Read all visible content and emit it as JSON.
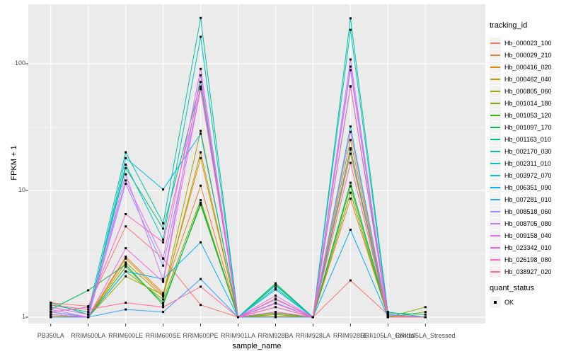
{
  "y_axis": {
    "title": "FPKM + 1",
    "tick_labels": [
      "1",
      "10",
      "100"
    ]
  },
  "x_axis": {
    "title": "sample_name"
  },
  "legend": {
    "title": "tracking_id"
  },
  "legend2": {
    "title": "quant_status",
    "item_label": "OK"
  },
  "chart_data": {
    "type": "line",
    "title": "",
    "xlabel": "sample_name",
    "ylabel": "FPKM + 1",
    "y_scale": "log10",
    "ylim": [
      0.9,
      295
    ],
    "y_ticks": [
      1,
      10,
      100
    ],
    "y_minor_ticks": [
      3.162,
      31.62
    ],
    "grid": true,
    "legend_position": "right",
    "panel_background": "#EBEBEB",
    "grid_color": "#FFFFFF",
    "tick_text_color": "#4D4D4D",
    "point_color": "#000000",
    "quant_status_label": "OK",
    "categories": [
      "PB350LA",
      "RRIM600LA",
      "RRIM600LE",
      "RRIM600SE",
      "RRIM600PE",
      "RRIM901LA",
      "RRIM928BA",
      "RRIM928LA",
      "RRIM928LE",
      "RRII105LA_Control",
      "RRII105LA_Stressed"
    ],
    "series": [
      {
        "name": "Hb_000023_100",
        "color": "#F8766D",
        "values": [
          1.3,
          1.22,
          5.2,
          2.9,
          1.25,
          1.0,
          1.4,
          1.0,
          1.95,
          1.05,
          1.0
        ]
      },
      {
        "name": "Hb_000029_210",
        "color": "#EA8331",
        "values": [
          1.1,
          1.0,
          3.0,
          1.55,
          10.9,
          1.0,
          1.1,
          1.0,
          8.6,
          1.02,
          1.0
        ]
      },
      {
        "name": "Hb_000416_020",
        "color": "#D89000",
        "values": [
          1.05,
          1.0,
          2.9,
          1.5,
          18.0,
          1.0,
          1.05,
          1.0,
          19.5,
          1.0,
          1.0
        ]
      },
      {
        "name": "Hb_000462_040",
        "color": "#C09B00",
        "values": [
          1.02,
          1.0,
          2.7,
          1.45,
          20.0,
          1.0,
          1.02,
          1.0,
          21.5,
          1.0,
          1.0
        ]
      },
      {
        "name": "Hb_000805_060",
        "color": "#A3A500",
        "values": [
          1.0,
          1.0,
          2.1,
          1.5,
          29.5,
          1.0,
          1.0,
          1.0,
          25.0,
          1.0,
          1.1
        ]
      },
      {
        "name": "Hb_001014_180",
        "color": "#7CAE00",
        "values": [
          1.05,
          1.0,
          2.3,
          1.38,
          8.4,
          1.0,
          1.05,
          1.0,
          9.6,
          1.0,
          1.2
        ]
      },
      {
        "name": "Hb_001053_120",
        "color": "#39B600",
        "values": [
          1.1,
          1.0,
          2.5,
          1.3,
          7.7,
          1.0,
          1.08,
          1.0,
          10.8,
          1.0,
          1.0
        ]
      },
      {
        "name": "Hb_001097_170",
        "color": "#00BB4E",
        "values": [
          1.15,
          1.63,
          2.6,
          1.25,
          8.0,
          1.0,
          1.85,
          1.0,
          11.5,
          1.05,
          1.0
        ]
      },
      {
        "name": "Hb_001163_010",
        "color": "#00BF7D",
        "values": [
          1.3,
          1.05,
          15.0,
          5.0,
          72.0,
          1.0,
          1.8,
          1.0,
          66.0,
          1.08,
          1.05
        ]
      },
      {
        "name": "Hb_002170_030",
        "color": "#00C1A3",
        "values": [
          1.25,
          1.1,
          20.0,
          5.5,
          230.0,
          1.0,
          1.78,
          1.0,
          228.0,
          1.1,
          1.0
        ]
      },
      {
        "name": "Hb_002311_010",
        "color": "#00BFC4",
        "values": [
          1.2,
          1.05,
          16.0,
          4.1,
          163.0,
          1.0,
          1.7,
          1.0,
          185.0,
          1.05,
          1.0
        ]
      },
      {
        "name": "Hb_003972_070",
        "color": "#00BAE0",
        "values": [
          1.1,
          1.0,
          18.0,
          10.2,
          28.0,
          1.0,
          1.65,
          1.0,
          32.0,
          1.0,
          1.0
        ]
      },
      {
        "name": "Hb_006351_090",
        "color": "#00B0F6",
        "values": [
          1.05,
          1.0,
          2.3,
          2.0,
          3.9,
          1.0,
          1.2,
          1.0,
          4.9,
          1.0,
          1.0
        ]
      },
      {
        "name": "Hb_007281_010",
        "color": "#35A2FF",
        "values": [
          1.0,
          1.0,
          1.15,
          1.1,
          2.0,
          1.0,
          1.0,
          1.0,
          21.0,
          1.0,
          1.0
        ]
      },
      {
        "name": "Hb_008518_060",
        "color": "#9590FF",
        "values": [
          1.1,
          1.0,
          11.3,
          2.55,
          63.0,
          1.0,
          1.3,
          1.0,
          89.0,
          1.0,
          1.0
        ]
      },
      {
        "name": "Hb_008705_080",
        "color": "#C77CFF",
        "values": [
          1.15,
          1.0,
          13.4,
          1.95,
          81.0,
          1.0,
          1.38,
          1.0,
          108.0,
          1.0,
          1.0
        ]
      },
      {
        "name": "Hb_009158_040",
        "color": "#E76BF3",
        "values": [
          1.2,
          1.05,
          12.0,
          2.9,
          91.0,
          1.0,
          1.48,
          1.0,
          95.0,
          1.04,
          1.0
        ]
      },
      {
        "name": "Hb_023342_010",
        "color": "#FA62DB",
        "values": [
          1.05,
          1.0,
          3.5,
          1.9,
          63.5,
          1.0,
          1.1,
          1.0,
          29.0,
          1.0,
          1.0
        ]
      },
      {
        "name": "Hb_026198_080",
        "color": "#FF62BC",
        "values": [
          1.1,
          1.2,
          6.5,
          3.9,
          66.0,
          1.0,
          1.28,
          1.0,
          66.5,
          1.0,
          1.0
        ]
      },
      {
        "name": "Hb_038927_020",
        "color": "#FF6A98",
        "values": [
          1.25,
          1.15,
          1.3,
          1.2,
          1.74,
          1.0,
          1.2,
          1.0,
          16.5,
          1.0,
          1.0
        ]
      }
    ]
  }
}
